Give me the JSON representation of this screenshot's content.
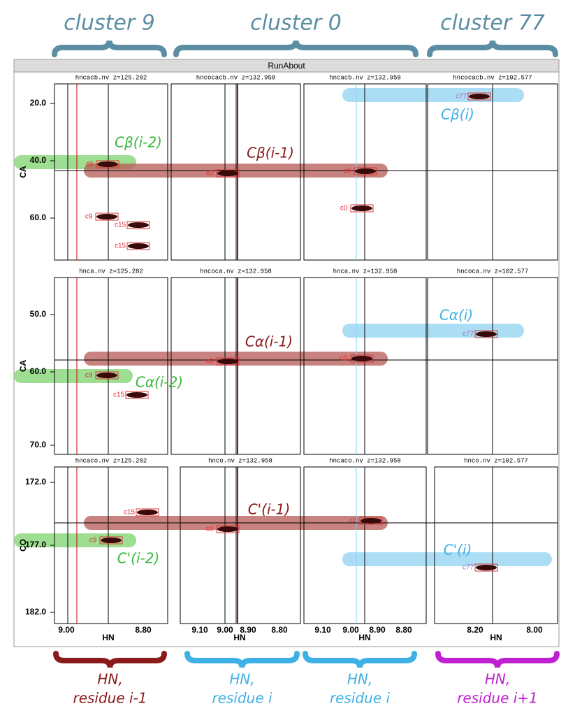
{
  "header": {
    "clusters": [
      "cluster 9",
      "cluster 0",
      "cluster 77"
    ]
  },
  "window": {
    "title": "RunAbout"
  },
  "rows": [
    {
      "axis_label": "CA",
      "ticks": [
        "20.0",
        "40.0",
        "60.0"
      ],
      "panels": [
        "hncacb.nv z=125.282",
        "hncocacb.nv z=132.958",
        "hncacb.nv z=132.958",
        "hncocacb.nv z=102.577"
      ]
    },
    {
      "axis_label": "CA",
      "ticks": [
        "50.0",
        "60.0",
        "70.0"
      ],
      "panels": [
        "hnca.nv z=125.282",
        "hncoca.nv z=132.958",
        "hnca.nv z=132.958",
        "hncoca.nv z=102.577"
      ]
    },
    {
      "axis_label": "CO",
      "ticks": [
        "172.0",
        "177.0",
        "182.0"
      ],
      "panels": [
        "hncaco.nv z=125.282",
        "hnco.nv z=132.958",
        "hncaco.nv z=132.958",
        "hnco.nv z=102.577"
      ]
    }
  ],
  "x_axis": {
    "label": "HN",
    "ticks": [
      [
        "9.00",
        "8.80"
      ],
      [
        "9.10",
        "9.00",
        "8.90",
        "8.80"
      ],
      [
        "9.10",
        "9.00",
        "8.90",
        "8.80"
      ],
      [
        "8.20",
        "8.00"
      ]
    ]
  },
  "annotations": [
    "Cβ(i-2)",
    "Cβ(i-1)",
    "Cβ(i)",
    "Cα(i)",
    "Cα(i-1)",
    "Cα(i-2)",
    "C'(i-1)",
    "C'(i-2)",
    "C'(i)"
  ],
  "peaks": [
    "c9",
    "c9",
    "c15",
    "c15",
    "c0",
    "c0",
    "c0",
    "c77",
    "c9",
    "c15",
    "c0",
    "c0",
    "c77",
    "c15",
    "c9",
    "c0",
    "c0",
    "c77"
  ],
  "footer": {
    "labels": [
      [
        "HN,",
        "residue i-1"
      ],
      [
        "HN,",
        "residue i"
      ],
      [
        "HN,",
        "residue i"
      ],
      [
        "HN,",
        "residue i+1"
      ]
    ]
  }
}
